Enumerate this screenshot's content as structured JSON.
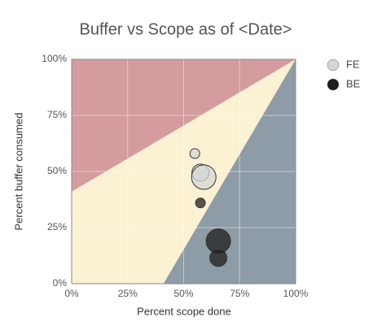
{
  "chart_data": {
    "type": "bubble",
    "title": "Buffer vs Scope as of  <Date>",
    "x_label": "Percent scope done",
    "y_label": "Percent buffer consumed",
    "xlim": [
      0,
      100
    ],
    "ylim": [
      0,
      100
    ],
    "xticks": [
      {
        "value": 0,
        "label": "0%"
      },
      {
        "value": 25,
        "label": "25%"
      },
      {
        "value": 50,
        "label": "50%"
      },
      {
        "value": 75,
        "label": "75%"
      },
      {
        "value": 100,
        "label": "100%"
      }
    ],
    "yticks": [
      {
        "value": 0,
        "label": "0%"
      },
      {
        "value": 25,
        "label": "25%"
      },
      {
        "value": 50,
        "label": "50%"
      },
      {
        "value": 75,
        "label": "75%"
      },
      {
        "value": 100,
        "label": "100%"
      }
    ],
    "grid": true,
    "legend": "right",
    "regions": [
      {
        "color": "#d49c9e",
        "points": [
          [
            0,
            41
          ],
          [
            100,
            100
          ],
          [
            0,
            100
          ]
        ]
      },
      {
        "color": "#fbf1d3",
        "points": [
          [
            0,
            0
          ],
          [
            41,
            0
          ],
          [
            100,
            100
          ],
          [
            0,
            41
          ]
        ]
      },
      {
        "color": "#8e9ca7",
        "points": [
          [
            41,
            0
          ],
          [
            100,
            0
          ],
          [
            100,
            100
          ]
        ]
      }
    ],
    "series": [
      {
        "name": "FE",
        "color": "#d6d6d6",
        "x": [
          55,
          57.5,
          59
        ],
        "values": [
          58,
          49.5,
          47.5
        ],
        "sizes": [
          1,
          2,
          3
        ]
      },
      {
        "name": "BE",
        "color": "#1e1e1e",
        "x": [
          57.5,
          65.5,
          65.5
        ],
        "values": [
          36,
          19,
          11.5
        ],
        "sizes": [
          1,
          3,
          2
        ]
      }
    ]
  }
}
